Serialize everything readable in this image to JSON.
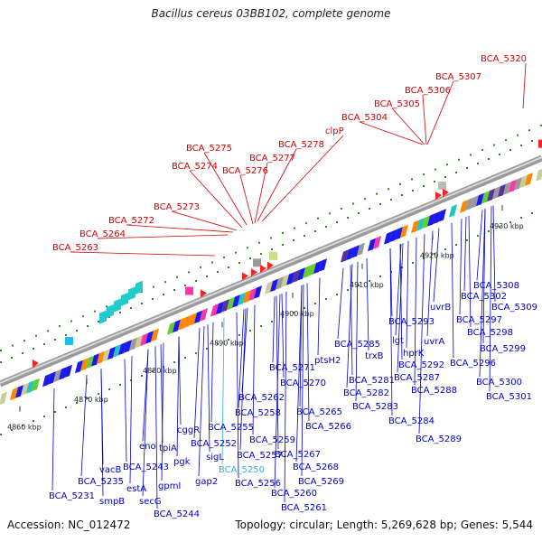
{
  "title": "Bacillus cereus 03BB102, complete genome",
  "footer": {
    "accession": "Accession: NC_012472",
    "summary": "Topology: circular; Length: 5,269,628 bp; Genes: 5,544"
  },
  "colors": {
    "forward_label": "#d40000",
    "reverse_label": "#0000cc",
    "highlight_label": "#33aadd",
    "backbone": "#808080",
    "gene_blue": "#1a1aee",
    "rna_red": "#ff1111"
  },
  "scale_ticks": [
    "4860 kbp",
    "4870 kbp",
    "4880 kbp",
    "4890 kbp",
    "4900 kbp",
    "4910 kbp",
    "4920 kbp",
    "4930 kbp"
  ],
  "labels_top": [
    "BCA_5320",
    "BCA_5307",
    "BCA_5306",
    "BCA_5305",
    "BCA_5304",
    "clpP",
    "BCA_5278",
    "BCA_5277",
    "BCA_5276",
    "BCA_5275",
    "BCA_5274",
    "BCA_5273",
    "BCA_5272",
    "BCA_5264",
    "BCA_5263"
  ],
  "labels_bottom": [
    "BCA_5308",
    "BCA_5302",
    "BCA_5309",
    "uvrB",
    "BCA_5297",
    "BCA_5298",
    "uvrA",
    "BCA_5299",
    "BCA_5296",
    "BCA_5300",
    "BCA_5301",
    "BCA_5293",
    "lgt",
    "hprK",
    "BCA_5292",
    "BCA_5287",
    "BCA_5288",
    "trxB",
    "BCA_5285",
    "ptsH2",
    "BCA_5281",
    "BCA_5282",
    "BCA_5283",
    "BCA_5284",
    "BCA_5289",
    "BCA_5271",
    "BCA_5270",
    "BCA_5262",
    "BCA_5265",
    "BCA_5266",
    "BCA_5258",
    "BCA_5255",
    "cggR",
    "BCA_5252",
    "BCA_5259",
    "sigL",
    "BCA_5257",
    "BCA_5250",
    "BCA_5267",
    "BCA_5268",
    "BCA_5269",
    "BCA_5256",
    "BCA_5260",
    "BCA_5261",
    "tpiA",
    "eno",
    "pgk",
    "BCA_5243",
    "gap2",
    "gpmI",
    "vacB",
    "BCA_5235",
    "estA",
    "smpB",
    "secG",
    "BCA_5231",
    "BCA_5244"
  ]
}
